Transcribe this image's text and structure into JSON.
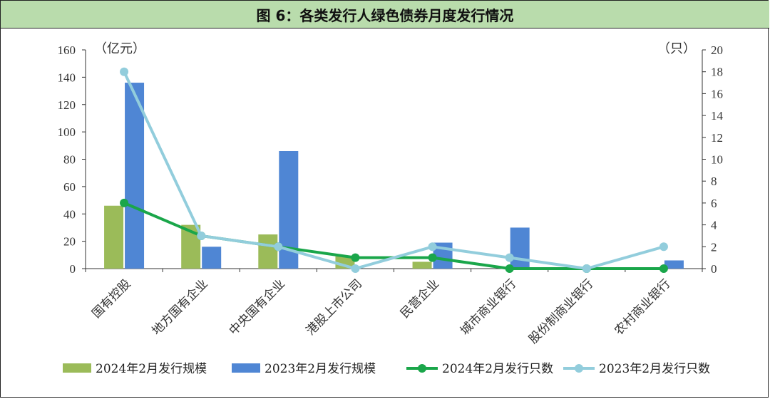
{
  "chart_data": {
    "type": "bar",
    "title": "图 6：各类发行人绿色债券月度发行情况",
    "y_left_unit": "（亿元）",
    "y_right_unit": "（只）",
    "ylim": [
      0,
      160
    ],
    "y_ticks": [
      "0",
      "20",
      "40",
      "60",
      "80",
      "100",
      "120",
      "140",
      "160"
    ],
    "y2lim": [
      0,
      20
    ],
    "y2_ticks": [
      "0",
      "2",
      "4",
      "6",
      "8",
      "10",
      "12",
      "14",
      "16",
      "18",
      "20"
    ],
    "categories": [
      "国有控股",
      "地方国有企业",
      "中央国有企业",
      "港股上市公司",
      "民营企业",
      "城市商业银行",
      "股份制商业银行",
      "农村商业银行"
    ],
    "series": [
      {
        "name": "2024年2月发行规模",
        "kind": "bar",
        "axis": "left",
        "color": "#9bbb59",
        "values": [
          46,
          32,
          25,
          9,
          5,
          0,
          0,
          0
        ]
      },
      {
        "name": "2023年2月发行规模",
        "kind": "bar",
        "axis": "left",
        "color": "#4f86d4",
        "values": [
          136,
          16,
          86,
          0,
          19,
          30,
          0,
          6
        ]
      },
      {
        "name": "2024年2月发行只数",
        "kind": "line",
        "axis": "right",
        "color": "#1aa64a",
        "values": [
          6,
          3,
          2,
          1,
          1,
          0,
          0,
          0
        ]
      },
      {
        "name": "2023年2月发行只数",
        "kind": "line",
        "axis": "right",
        "color": "#92cddc",
        "values": [
          18,
          3,
          2,
          0,
          2,
          1,
          0,
          2
        ]
      }
    ],
    "grid": false,
    "legend_position": "bottom"
  }
}
